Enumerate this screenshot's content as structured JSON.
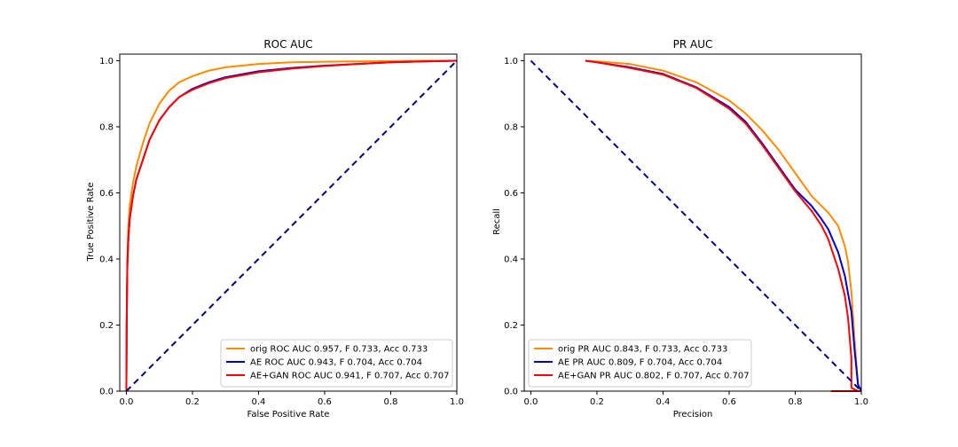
{
  "chart_data": [
    {
      "type": "line",
      "title": "ROC AUC",
      "xlabel": "False Positive Rate",
      "ylabel": "True Positive Rate",
      "xlim": [
        0.0,
        1.0
      ],
      "ylim": [
        0.0,
        1.0
      ],
      "xticks": [
        "0.0",
        "0.2",
        "0.4",
        "0.6",
        "0.8",
        "1.0"
      ],
      "yticks": [
        "0.0",
        "0.2",
        "0.4",
        "0.6",
        "0.8",
        "1.0"
      ],
      "grid": false,
      "legend_position": "lower-right",
      "series": [
        {
          "name": "orig ROC AUC 0.957, F 0.733, Acc 0.733",
          "color": "#ff8c00",
          "x": [
            0.0,
            0.001,
            0.003,
            0.006,
            0.01,
            0.02,
            0.03,
            0.05,
            0.07,
            0.1,
            0.13,
            0.16,
            0.2,
            0.25,
            0.3,
            0.4,
            0.5,
            0.6,
            0.7,
            0.8,
            0.9,
            1.0
          ],
          "y": [
            0.0,
            0.2,
            0.4,
            0.5,
            0.56,
            0.63,
            0.68,
            0.75,
            0.81,
            0.87,
            0.91,
            0.935,
            0.953,
            0.97,
            0.98,
            0.99,
            0.995,
            0.997,
            0.998,
            0.999,
            1.0,
            1.0
          ]
        },
        {
          "name": "AE ROC AUC 0.943, F 0.704, Acc 0.704",
          "color": "#0000cd",
          "x": [
            0.0,
            0.001,
            0.003,
            0.006,
            0.01,
            0.02,
            0.03,
            0.05,
            0.07,
            0.1,
            0.13,
            0.16,
            0.2,
            0.25,
            0.3,
            0.4,
            0.5,
            0.6,
            0.7,
            0.8,
            0.9,
            1.0
          ],
          "y": [
            0.0,
            0.2,
            0.38,
            0.46,
            0.52,
            0.59,
            0.64,
            0.7,
            0.76,
            0.82,
            0.86,
            0.89,
            0.915,
            0.935,
            0.95,
            0.968,
            0.978,
            0.985,
            0.99,
            0.995,
            0.998,
            1.0
          ]
        },
        {
          "name": "AE+GAN ROC AUC 0.941, F 0.707, Acc 0.707",
          "color": "#ff0000",
          "x": [
            0.0,
            0.001,
            0.003,
            0.006,
            0.01,
            0.02,
            0.03,
            0.05,
            0.07,
            0.1,
            0.13,
            0.16,
            0.2,
            0.25,
            0.3,
            0.4,
            0.5,
            0.6,
            0.7,
            0.8,
            0.9,
            1.0
          ],
          "y": [
            0.0,
            0.2,
            0.38,
            0.46,
            0.52,
            0.59,
            0.64,
            0.7,
            0.76,
            0.82,
            0.86,
            0.89,
            0.912,
            0.932,
            0.947,
            0.965,
            0.976,
            0.984,
            0.99,
            0.995,
            0.998,
            1.0
          ]
        },
        {
          "name": "",
          "color": "#000080",
          "dashed": true,
          "x": [
            0.0,
            1.0
          ],
          "y": [
            0.0,
            1.0
          ]
        }
      ]
    },
    {
      "type": "line",
      "title": "PR AUC",
      "xlabel": "Precision",
      "ylabel": "Recall",
      "xlim": [
        0.0,
        1.0
      ],
      "ylim": [
        0.0,
        1.0
      ],
      "xticks": [
        "0.0",
        "0.2",
        "0.4",
        "0.6",
        "0.8",
        "1.0"
      ],
      "yticks": [
        "0.0",
        "0.2",
        "0.4",
        "0.6",
        "0.8",
        "1.0"
      ],
      "grid": false,
      "legend_position": "lower-left",
      "series": [
        {
          "name": "orig PR AUC 0.843, F 0.733, Acc 0.733",
          "color": "#ff8c00",
          "x": [
            0.165,
            0.2,
            0.3,
            0.4,
            0.5,
            0.6,
            0.65,
            0.7,
            0.75,
            0.8,
            0.85,
            0.9,
            0.93,
            0.95,
            0.96,
            0.97,
            0.98,
            0.99,
            1.0
          ],
          "y": [
            1.0,
            0.998,
            0.99,
            0.97,
            0.935,
            0.88,
            0.84,
            0.79,
            0.73,
            0.66,
            0.59,
            0.54,
            0.5,
            0.44,
            0.39,
            0.3,
            0.15,
            0.02,
            0.0
          ]
        },
        {
          "name": "AE PR AUC 0.809, F 0.704, Acc 0.704",
          "color": "#0000cd",
          "x": [
            0.165,
            0.2,
            0.3,
            0.4,
            0.5,
            0.6,
            0.65,
            0.7,
            0.75,
            0.8,
            0.85,
            0.88,
            0.9,
            0.93,
            0.95,
            0.97,
            0.98,
            0.99,
            1.0
          ],
          "y": [
            1.0,
            0.995,
            0.98,
            0.96,
            0.92,
            0.86,
            0.815,
            0.75,
            0.68,
            0.61,
            0.56,
            0.52,
            0.49,
            0.42,
            0.35,
            0.24,
            0.12,
            0.02,
            0.0
          ]
        },
        {
          "name": "AE+GAN PR AUC 0.802, F 0.707, Acc 0.707",
          "color": "#ff0000",
          "x": [
            0.165,
            0.2,
            0.3,
            0.4,
            0.5,
            0.6,
            0.65,
            0.7,
            0.75,
            0.8,
            0.85,
            0.88,
            0.9,
            0.93,
            0.95,
            0.96,
            0.97,
            0.97,
            0.98,
            0.99,
            0.91,
            1.0
          ],
          "y": [
            1.0,
            0.995,
            0.978,
            0.958,
            0.918,
            0.855,
            0.81,
            0.745,
            0.675,
            0.605,
            0.545,
            0.5,
            0.46,
            0.37,
            0.29,
            0.22,
            0.1,
            0.01,
            0.005,
            0.0,
            0.0,
            0.0
          ]
        },
        {
          "name": "",
          "color": "#000080",
          "dashed": true,
          "x": [
            0.0,
            1.0
          ],
          "y": [
            1.0,
            0.0
          ]
        }
      ]
    }
  ]
}
